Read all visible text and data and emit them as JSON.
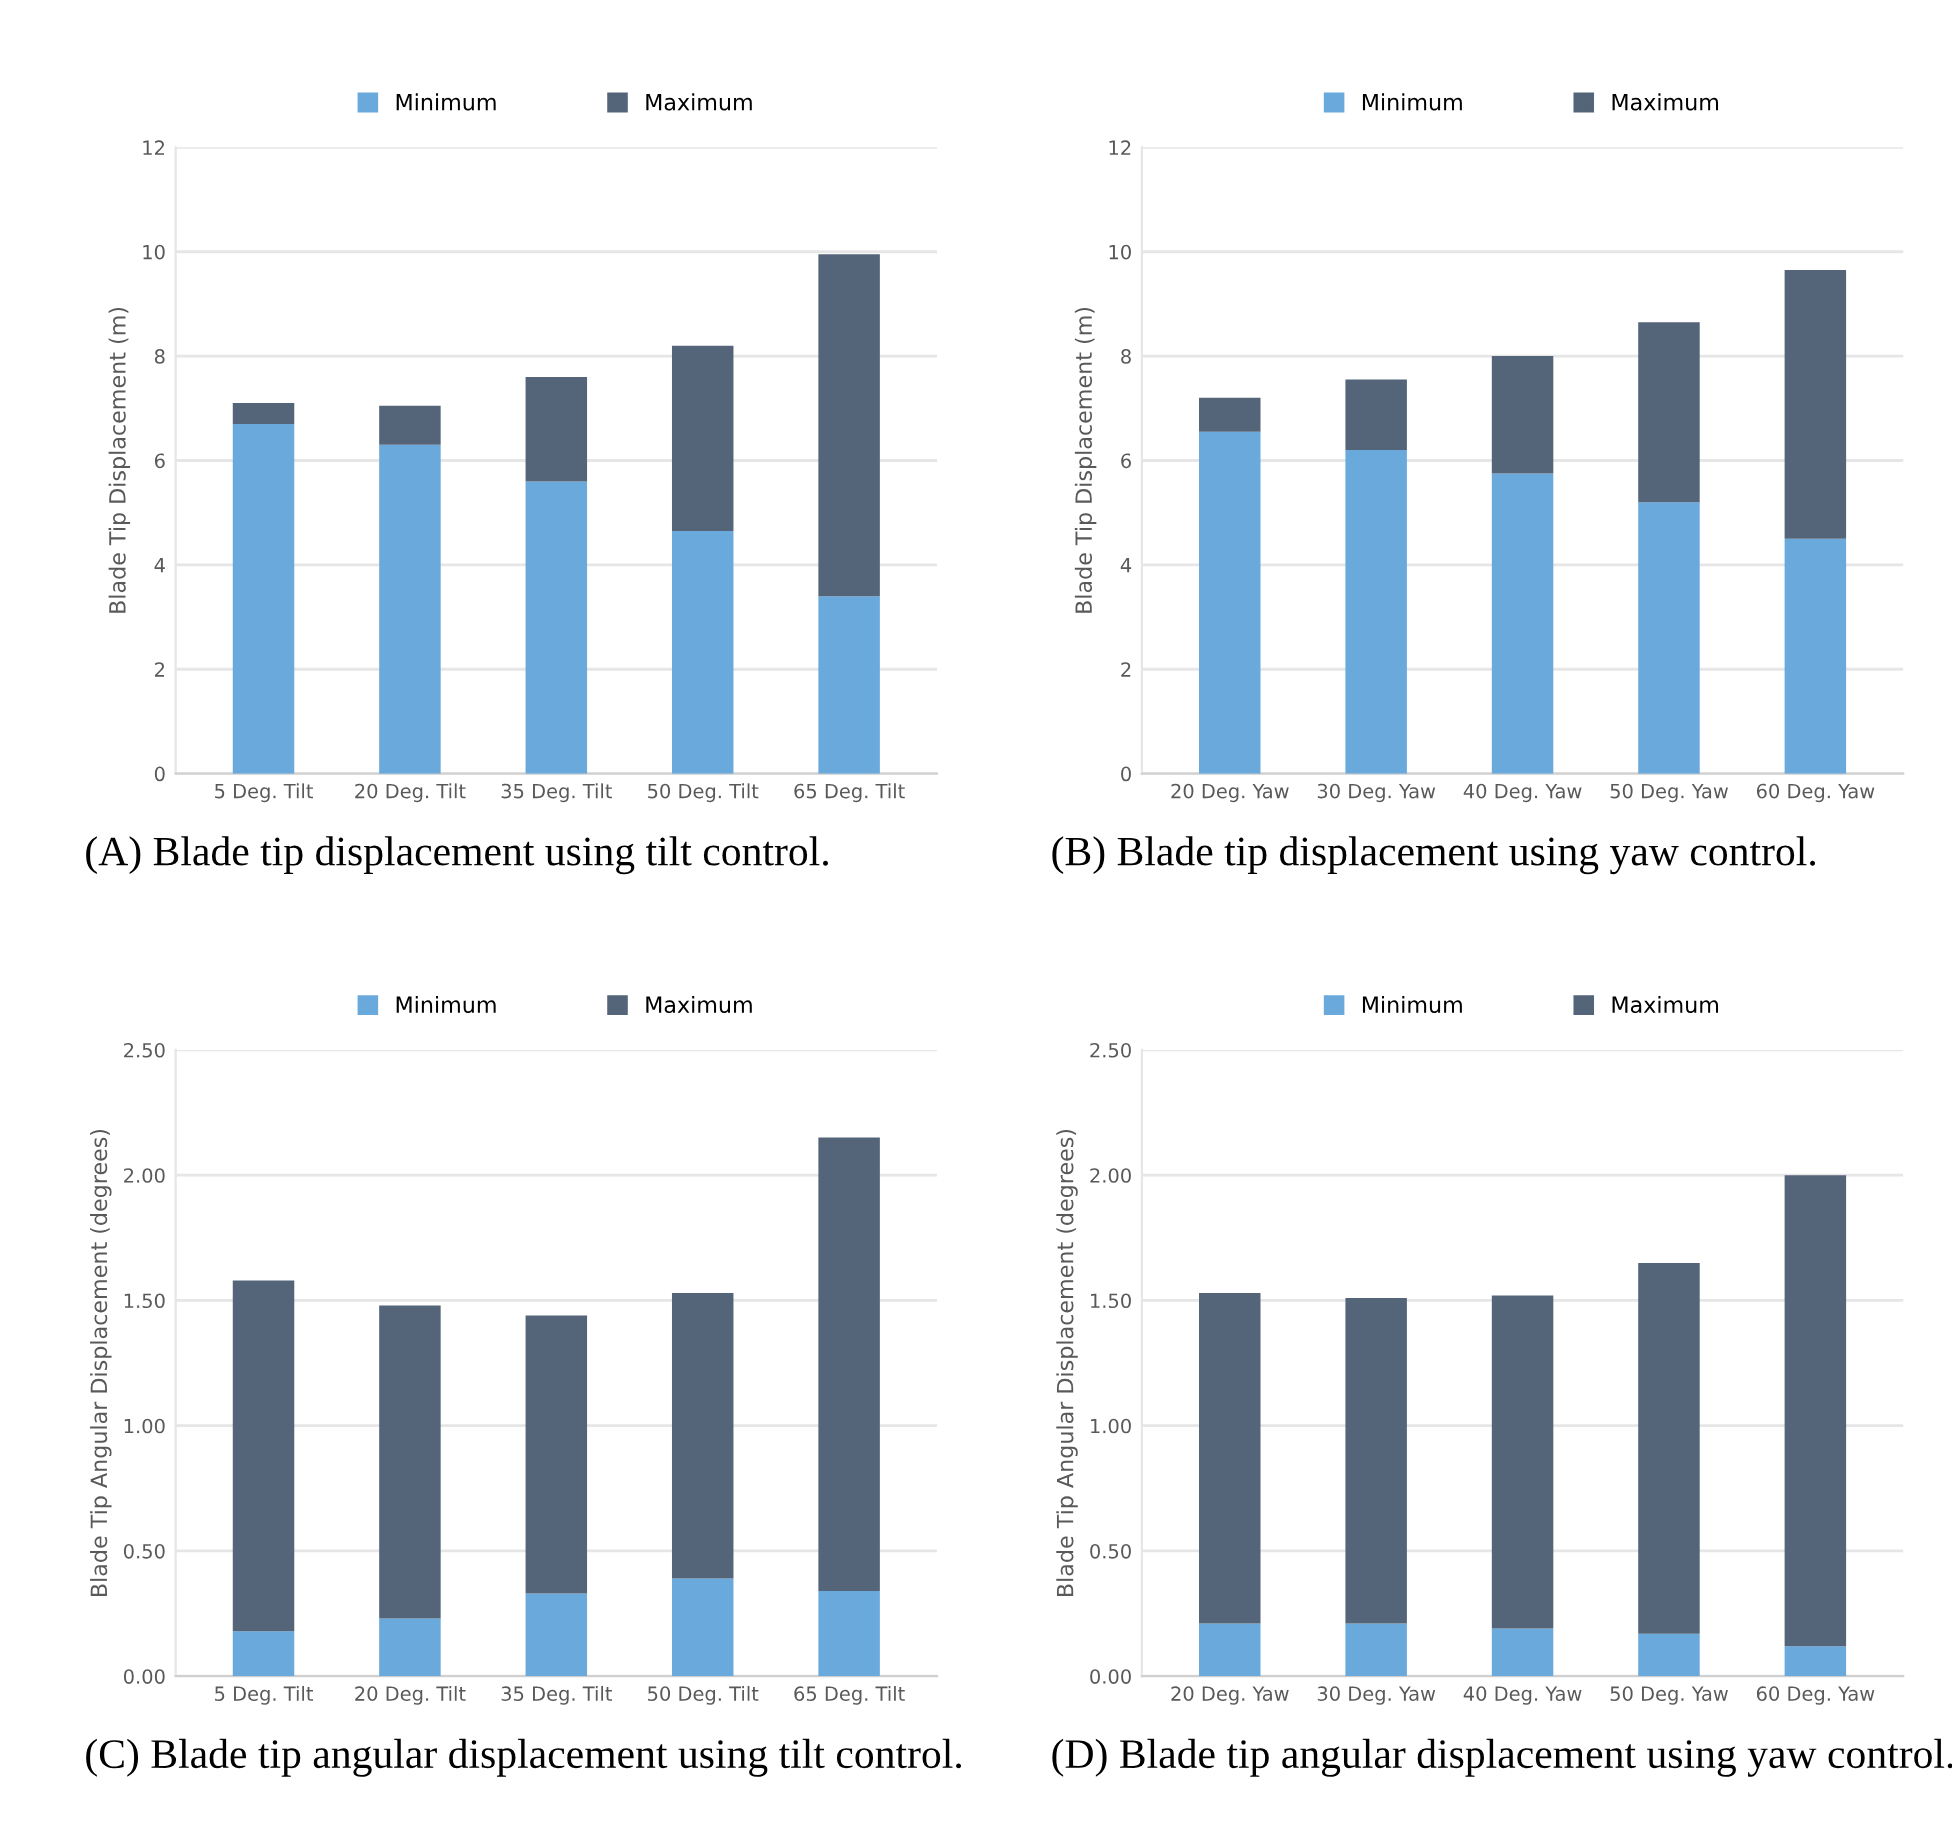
{
  "chart_data": [
    {
      "type": "bar",
      "stacked": true,
      "categories": [
        "5 Deg. Tilt",
        "20 Deg. Tilt",
        "35 Deg. Tilt",
        "50 Deg. Tilt",
        "65 Deg. Tilt"
      ],
      "ylabel": "Blade Tip Displacement (m)",
      "ylim": [
        0,
        12
      ],
      "yticks": [
        0,
        2,
        4,
        6,
        8,
        10,
        12
      ],
      "grid": "y",
      "legend": "top",
      "series": [
        {
          "name": "Minimum",
          "color": "#6aa9dc",
          "values": [
            6.7,
            6.3,
            5.6,
            4.65,
            3.4
          ]
        },
        {
          "name": "Maximum",
          "color": "#546479",
          "values": [
            0.4,
            0.75,
            2.0,
            3.55,
            6.55
          ]
        }
      ],
      "annotations": [
        "(A) Blade tip displacement using tilt control."
      ]
    },
    {
      "type": "bar",
      "stacked": true,
      "categories": [
        "20 Deg. Yaw",
        "30 Deg. Yaw",
        "40 Deg. Yaw",
        "50 Deg. Yaw",
        "60 Deg. Yaw"
      ],
      "ylabel": "Blade Tip Displacement (m)",
      "ylim": [
        0,
        12
      ],
      "yticks": [
        0,
        2,
        4,
        6,
        8,
        10,
        12
      ],
      "grid": "y",
      "legend": "top",
      "series": [
        {
          "name": "Minimum",
          "color": "#6aa9dc",
          "values": [
            6.55,
            6.2,
            5.75,
            5.2,
            4.5
          ]
        },
        {
          "name": "Maximum",
          "color": "#546479",
          "values": [
            0.65,
            1.35,
            2.25,
            3.45,
            5.15
          ]
        }
      ],
      "annotations": [
        "(B) Blade tip displacement using yaw control."
      ]
    },
    {
      "type": "bar",
      "stacked": true,
      "categories": [
        "5 Deg. Tilt",
        "20 Deg. Tilt",
        "35 Deg. Tilt",
        "50 Deg. Tilt",
        "65 Deg. Tilt"
      ],
      "ylabel": "Blade Tip Angular Displacement (degrees)",
      "ylim": [
        0,
        2.5
      ],
      "yticks": [
        {
          "value": 0,
          "label": "0.00"
        },
        {
          "value": 0.5,
          "label": "0.50"
        },
        {
          "value": 1,
          "label": "1.00"
        },
        {
          "value": 1.5,
          "label": "1.50"
        },
        {
          "value": 2,
          "label": "2.00"
        },
        {
          "value": 2.5,
          "label": "2.50"
        }
      ],
      "grid": "y",
      "legend": "top",
      "series": [
        {
          "name": "Minimum",
          "color": "#6aa9dc",
          "values": [
            0.18,
            0.23,
            0.33,
            0.39,
            0.34
          ]
        },
        {
          "name": "Maximum",
          "color": "#546479",
          "values": [
            1.4,
            1.25,
            1.11,
            1.14,
            1.81
          ]
        }
      ],
      "annotations": [
        "(C) Blade tip angular displacement using tilt control."
      ]
    },
    {
      "type": "bar",
      "stacked": true,
      "categories": [
        "20 Deg. Yaw",
        "30 Deg. Yaw",
        "40 Deg. Yaw",
        "50 Deg. Yaw",
        "60 Deg. Yaw"
      ],
      "ylabel": "Blade Tip Angular Displacement (degrees)",
      "ylim": [
        0,
        2.5
      ],
      "yticks": [
        {
          "value": 0,
          "label": "0.00"
        },
        {
          "value": 0.5,
          "label": "0.50"
        },
        {
          "value": 1,
          "label": "1.00"
        },
        {
          "value": 1.5,
          "label": "1.50"
        },
        {
          "value": 2,
          "label": "2.00"
        },
        {
          "value": 2.5,
          "label": "2.50"
        }
      ],
      "grid": "y",
      "legend": "top",
      "series": [
        {
          "name": "Minimum",
          "color": "#6aa9dc",
          "values": [
            0.21,
            0.21,
            0.19,
            0.17,
            0.12
          ]
        },
        {
          "name": "Maximum",
          "color": "#546479",
          "values": [
            1.32,
            1.3,
            1.33,
            1.48,
            1.88
          ]
        }
      ],
      "annotations": [
        "(D) Blade tip angular displacement using yaw control."
      ]
    }
  ]
}
